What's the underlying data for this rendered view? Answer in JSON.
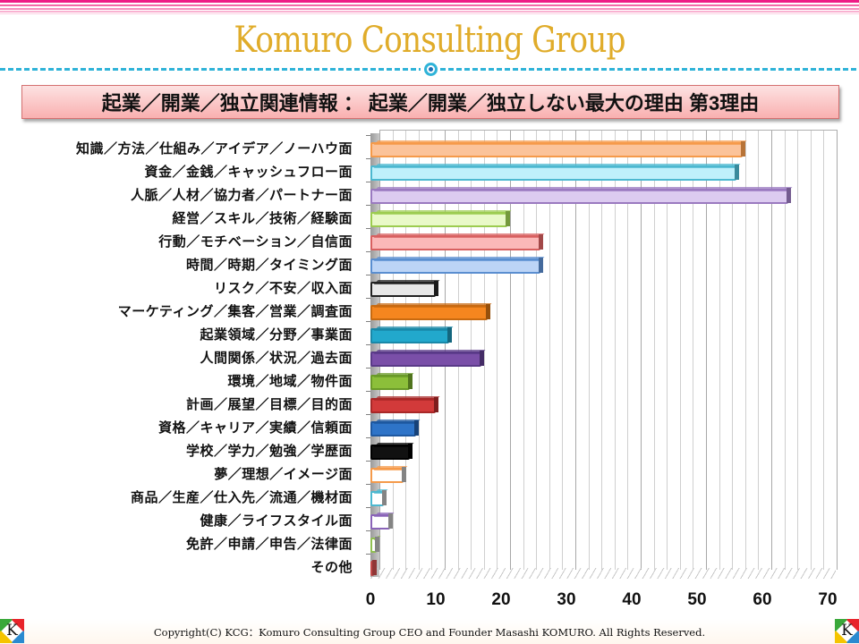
{
  "header": {
    "brand_title": "Komuro Consulting Group",
    "subtitle": "起業／開業／独立関連情報 ： 起業／開業／独立しない最大の理由 第3理由"
  },
  "colors": {
    "brand_gold": "#e0ac2a",
    "stripe_pink": "#ee1c86",
    "dash_cyan": "#2fb3d8",
    "subtitle_bg": "#f9b0b0"
  },
  "chart_data": {
    "type": "bar",
    "orientation": "horizontal",
    "style": "3d-clustered-bar",
    "title": "起業／開業／独立しない最大の理由 第3理由",
    "xlabel": "",
    "ylabel": "",
    "xlim": [
      0,
      70
    ],
    "x_ticks": [
      "0",
      "10",
      "20",
      "30",
      "40",
      "50",
      "60",
      "70"
    ],
    "grid": true,
    "legend": "none",
    "categories": [
      "知識／方法／仕組み／アイデア／ノーハウ面",
      "資金／金銭／キャッシュフロー面",
      "人脈／人材／協力者／パートナー面",
      "経営／スキル／技術／経験面",
      "行動／モチベーション／自信面",
      "時間／時期／タイミング面",
      "リスク／不安／収入面",
      "マーケティング／集客／営業／調査面",
      "起業領域／分野／事業面",
      "人間関係／状況／過去面",
      "環境／地域／物件面",
      "計画／展望／目標／目的面",
      "資格／キャリア／実績／信頼面",
      "学校／学力／勉強／学歴面",
      "夢／理想／イメージ面",
      "商品／生産／仕入先／流通／機材面",
      "健康／ライフスタイル面",
      "免許／申請／申告／法律面",
      "その他"
    ],
    "values": [
      57,
      56,
      64,
      21,
      26,
      26,
      10,
      18,
      12,
      17,
      6,
      10,
      7,
      6,
      5,
      2,
      3,
      1,
      0
    ],
    "bar_colors": [
      "#fbc39a",
      "#bff0fb",
      "#dccbf0",
      "#e9f9c8",
      "#fbb8b8",
      "#bcd4f6",
      "#e8e8e8",
      "#f5861f",
      "#22a8cc",
      "#7a4fa8",
      "#8cbf3a",
      "#d23a3a",
      "#2e74c8",
      "#111111",
      "#ffffff",
      "#ffffff",
      "#ffffff",
      "#ffffff",
      "#d05050"
    ],
    "bar_borders": [
      "#f59a4a",
      "#4cb8d0",
      "#9a7ac0",
      "#9ccc50",
      "#d86060",
      "#5a8ed0",
      "#222222",
      "#c86a10",
      "#1a88a8",
      "#5a3a88",
      "#6a9a28",
      "#a82828",
      "#1e58a0",
      "#000000",
      "#f59a4a",
      "#4cb8d0",
      "#8a64b8",
      "#90c050",
      "#c04848"
    ]
  },
  "footer": {
    "copyright": "Copyright(C)  KCG：Komuro Consulting Group   CEO and Founder  Masashi KOMURO. All Rights Reserved.",
    "logo_letter": "K"
  }
}
